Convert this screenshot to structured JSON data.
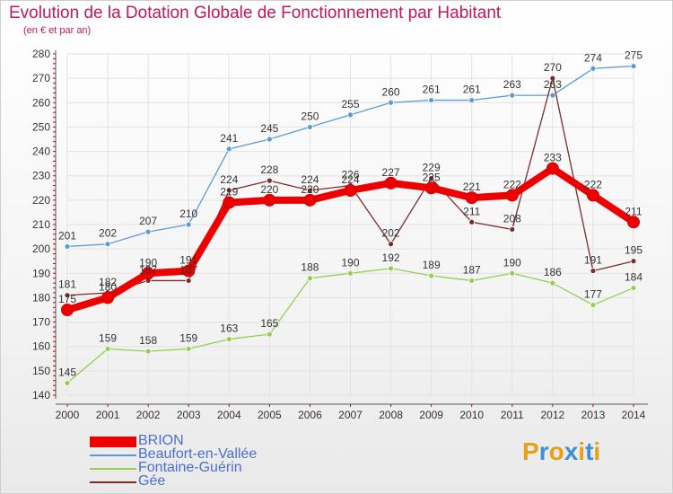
{
  "title": "Evolution de la Dotation Globale de Fonctionnement par Habitant",
  "subtitle": "(en € et par an)",
  "logo": {
    "text": "Proxiti",
    "letter_colors": [
      "#e8a014",
      "#3e8fd6",
      "#e8a014",
      "#3e8fd6",
      "#e8a014",
      "#3e8fd6",
      "#e8a014"
    ]
  },
  "chart_data": {
    "type": "line",
    "x": [
      "2000",
      "2001",
      "2002",
      "2003",
      "2004",
      "2005",
      "2006",
      "2007",
      "2008",
      "2009",
      "2010",
      "2011",
      "2012",
      "2013",
      "2014"
    ],
    "ylim": [
      140,
      280
    ],
    "yticks": [
      140,
      150,
      160,
      170,
      180,
      190,
      200,
      210,
      220,
      230,
      240,
      250,
      260,
      270,
      280
    ],
    "grid": true,
    "legend_position": "bottom-left",
    "series": [
      {
        "name": "BRION",
        "color": "#ee0000",
        "values": [
          175,
          180,
          190,
          191,
          219,
          220,
          220,
          224,
          227,
          225,
          221,
          222,
          233,
          222,
          211
        ]
      },
      {
        "name": "Beaufort-en-Vallée",
        "color": "#5b9bd5",
        "values": [
          201,
          202,
          207,
          210,
          241,
          245,
          250,
          255,
          260,
          261,
          261,
          263,
          263,
          274,
          275
        ]
      },
      {
        "name": "Fontaine-Guérin",
        "color": "#8fd14f",
        "values": [
          145,
          159,
          158,
          159,
          163,
          165,
          188,
          190,
          192,
          189,
          187,
          190,
          186,
          177,
          184
        ]
      },
      {
        "name": "Gée",
        "color": "#7b2b2b",
        "values": [
          181,
          182,
          187,
          187,
          224,
          228,
          224,
          226,
          202,
          229,
          211,
          208,
          270,
          191,
          195
        ]
      }
    ]
  }
}
